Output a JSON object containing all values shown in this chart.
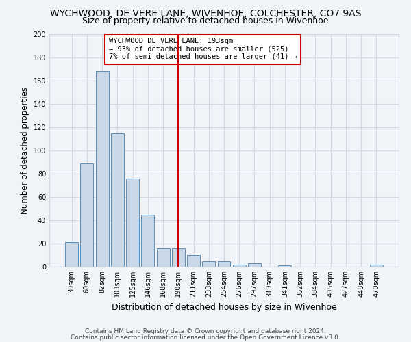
{
  "title": "WYCHWOOD, DE VERE LANE, WIVENHOE, COLCHESTER, CO7 9AS",
  "subtitle": "Size of property relative to detached houses in Wivenhoe",
  "xlabel": "Distribution of detached houses by size in Wivenhoe",
  "ylabel": "Number of detached properties",
  "categories": [
    "39sqm",
    "60sqm",
    "82sqm",
    "103sqm",
    "125sqm",
    "146sqm",
    "168sqm",
    "190sqm",
    "211sqm",
    "233sqm",
    "254sqm",
    "276sqm",
    "297sqm",
    "319sqm",
    "341sqm",
    "362sqm",
    "384sqm",
    "405sqm",
    "427sqm",
    "448sqm",
    "470sqm"
  ],
  "values": [
    21,
    89,
    168,
    115,
    76,
    45,
    16,
    16,
    10,
    5,
    5,
    2,
    3,
    0,
    1,
    0,
    0,
    0,
    0,
    0,
    2
  ],
  "bar_color": "#c8d8e8",
  "bar_edge_color": "#5b8db8",
  "background_color": "#f0f4f8",
  "grid_color": "#d0d8e0",
  "vline_x_index": 7,
  "vline_color": "#cc0000",
  "annotation_title": "WYCHWOOD DE VERE LANE: 193sqm",
  "annotation_line1": "← 93% of detached houses are smaller (525)",
  "annotation_line2": "7% of semi-detached houses are larger (41) →",
  "annotation_box_color": "#ffffff",
  "annotation_box_edge": "#cc0000",
  "ylim": [
    0,
    200
  ],
  "yticks": [
    0,
    20,
    40,
    60,
    80,
    100,
    120,
    140,
    160,
    180,
    200
  ],
  "footer1": "Contains HM Land Registry data © Crown copyright and database right 2024.",
  "footer2": "Contains public sector information licensed under the Open Government Licence v3.0.",
  "title_fontsize": 10,
  "subtitle_fontsize": 9,
  "xlabel_fontsize": 9,
  "ylabel_fontsize": 8.5,
  "tick_fontsize": 7,
  "footer_fontsize": 6.5,
  "annotation_fontsize": 7.5
}
